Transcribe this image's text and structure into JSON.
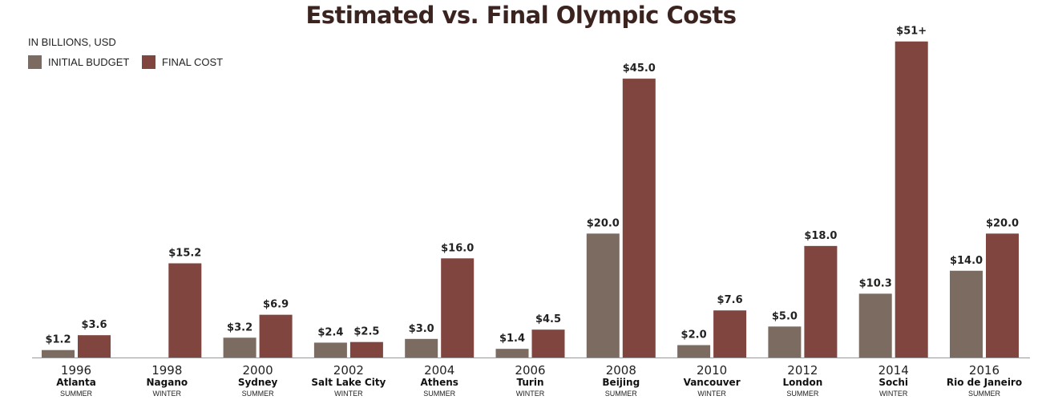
{
  "chart_data": {
    "type": "bar",
    "title": "Estimated vs. Final Olympic Costs",
    "unit_label": "IN BILLIONS, USD",
    "legend_position": "top-left",
    "colors": {
      "initial": "#7b6b60",
      "final": "#80453f",
      "baseline": "#999999"
    },
    "ylim": [
      0,
      52
    ],
    "categories": [
      {
        "year": "1996",
        "city": "Atlanta",
        "season": "SUMMER"
      },
      {
        "year": "1998",
        "city": "Nagano",
        "season": "WINTER"
      },
      {
        "year": "2000",
        "city": "Sydney",
        "season": "SUMMER"
      },
      {
        "year": "2002",
        "city": "Salt Lake City",
        "season": "WINTER"
      },
      {
        "year": "2004",
        "city": "Athens",
        "season": "SUMMER"
      },
      {
        "year": "2006",
        "city": "Turin",
        "season": "WINTER"
      },
      {
        "year": "2008",
        "city": "Beijing",
        "season": "SUMMER"
      },
      {
        "year": "2010",
        "city": "Vancouver",
        "season": "WINTER"
      },
      {
        "year": "2012",
        "city": "London",
        "season": "SUMMER"
      },
      {
        "year": "2014",
        "city": "Sochi",
        "season": "WINTER"
      },
      {
        "year": "2016",
        "city": "Rio de Janeiro",
        "season": "SUMMER"
      }
    ],
    "series": [
      {
        "name": "INITIAL BUDGET",
        "values": [
          1.2,
          null,
          3.2,
          2.4,
          3.0,
          1.4,
          20.0,
          2.0,
          5.0,
          10.3,
          14.0
        ],
        "labels": [
          "$1.2",
          "",
          "$3.2",
          "$2.4",
          "$3.0",
          "$1.4",
          "$20.0",
          "$2.0",
          "$5.0",
          "$10.3",
          "$14.0"
        ]
      },
      {
        "name": "FINAL COST",
        "values": [
          3.6,
          15.2,
          6.9,
          2.5,
          16.0,
          4.5,
          45.0,
          7.6,
          18.0,
          51.0,
          20.0
        ],
        "labels": [
          "$3.6",
          "$15.2",
          "$6.9",
          "$2.5",
          "$16.0",
          "$4.5",
          "$45.0",
          "$7.6",
          "$18.0",
          "$51+",
          "$20.0"
        ]
      }
    ]
  }
}
